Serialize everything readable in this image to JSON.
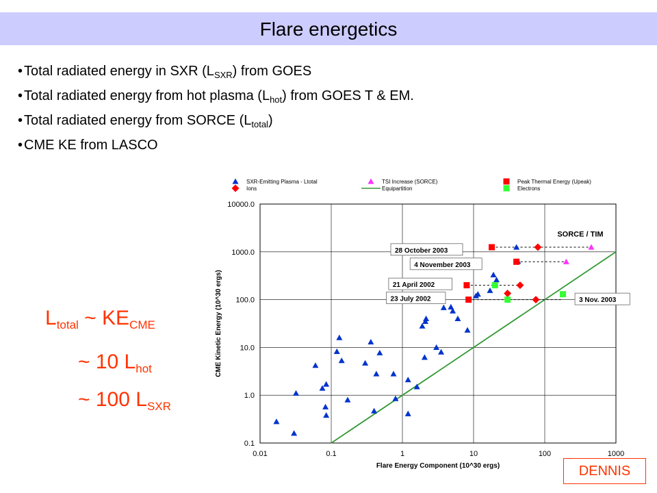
{
  "title": "Flare energetics",
  "bullets": [
    {
      "pre": "Total radiated energy in SXR (L",
      "sub": "SXR",
      "post": ") from GOES"
    },
    {
      "pre": "Total radiated energy from hot plasma (L",
      "sub": "hot",
      "post": ") from GOES T & EM."
    },
    {
      "pre": "Total radiated energy from SORCE (L",
      "sub": "total",
      "post": ")"
    },
    {
      "pre": "CME KE from LASCO",
      "sub": "",
      "post": ""
    }
  ],
  "equations": {
    "line1": {
      "a": "L",
      "a_sub": "total",
      "b": " ~ KE",
      "b_sub": "CME"
    },
    "line2": {
      "a": "~ 10 L",
      "a_sub": "hot"
    },
    "line3": {
      "a": "~ 100 L",
      "a_sub": "SXR"
    }
  },
  "credit": "DENNIS",
  "colors": {
    "title_bar": "#ccccff",
    "accent": "#ff3300",
    "blue": "#0033cc",
    "red": "#ff0000",
    "magenta": "#ff33ff",
    "green": "#33ff33",
    "line": "#339933"
  },
  "chart_data": {
    "type": "scatter",
    "xscale": "log",
    "yscale": "log",
    "xlim": [
      0.01,
      1000
    ],
    "ylim": [
      0.1,
      10000
    ],
    "xlabel": "Flare Energy Component (10^30 ergs)",
    "ylabel": "CME Kinetic Energy (10^30 ergs)",
    "x_ticks": [
      "0.01",
      "0.1",
      "1",
      "10",
      "100",
      "1000"
    ],
    "y_ticks": [
      "0.1",
      "1.0",
      "10.0",
      "100.0",
      "1000.0",
      "10000.0"
    ],
    "grid": true,
    "legend_position": "top",
    "legend": [
      {
        "label": "SXR-Emitting Plasma - Ltotal",
        "marker": "triangle",
        "color": "#0033cc"
      },
      {
        "label": "Ions",
        "marker": "diamond",
        "color": "#ff0000"
      },
      {
        "label": "TSI Increase (SORCE)",
        "marker": "triangle",
        "color": "#ff33ff"
      },
      {
        "label": "Equipartition",
        "marker": "line",
        "color": "#339933"
      },
      {
        "label": "Peak Thermal Energy (Upeak)",
        "marker": "square",
        "color": "#ff0000"
      },
      {
        "label": "Electrons",
        "marker": "square",
        "color": "#33ff33"
      }
    ],
    "series": [
      {
        "name": "SXR-Emitting Plasma - Ltotal",
        "marker": "triangle",
        "color": "#0033cc",
        "points": [
          [
            0.017,
            0.28
          ],
          [
            0.03,
            0.16
          ],
          [
            0.032,
            1.1
          ],
          [
            0.06,
            4.2
          ],
          [
            0.075,
            1.4
          ],
          [
            0.085,
            1.7
          ],
          [
            0.083,
            0.57
          ],
          [
            0.085,
            0.38
          ],
          [
            0.12,
            8.2
          ],
          [
            0.13,
            16
          ],
          [
            0.14,
            5.3
          ],
          [
            0.17,
            0.8
          ],
          [
            0.3,
            4.7
          ],
          [
            0.36,
            13
          ],
          [
            0.4,
            0.47
          ],
          [
            0.43,
            2.8
          ],
          [
            0.48,
            7.7
          ],
          [
            0.75,
            2.8
          ],
          [
            0.8,
            0.85
          ],
          [
            1.2,
            2.1
          ],
          [
            1.2,
            0.41
          ],
          [
            1.6,
            1.5
          ],
          [
            1.9,
            28
          ],
          [
            2.05,
            6.2
          ],
          [
            2.1,
            35
          ],
          [
            2.15,
            40
          ],
          [
            3.0,
            10
          ],
          [
            3.5,
            8
          ],
          [
            3.8,
            68
          ],
          [
            4.8,
            70
          ],
          [
            5.1,
            58
          ],
          [
            6.0,
            40
          ],
          [
            8.2,
            23
          ],
          [
            10.8,
            120
          ],
          [
            11.5,
            130
          ],
          [
            17,
            155
          ],
          [
            19,
            330
          ],
          [
            21,
            260
          ],
          [
            40,
            1250
          ],
          [
            42,
            630
          ]
        ]
      },
      {
        "name": "TSI Increase (SORCE)",
        "marker": "triangle",
        "color": "#ff33ff",
        "points": [
          [
            450,
            1250
          ],
          [
            200,
            620
          ]
        ]
      },
      {
        "name": "Peak Thermal Energy (Upeak)",
        "marker": "square",
        "color": "#ff0000",
        "points": [
          [
            18,
            1250
          ],
          [
            40,
            620
          ],
          [
            8,
            200
          ],
          [
            8.5,
            100
          ]
        ]
      },
      {
        "name": "Ions",
        "marker": "diamond",
        "color": "#ff0000",
        "points": [
          [
            80,
            1250
          ],
          [
            45,
            200
          ],
          [
            30,
            135
          ],
          [
            75,
            100
          ]
        ]
      },
      {
        "name": "Electrons",
        "marker": "square",
        "color": "#33ff33",
        "points": [
          [
            20,
            200
          ],
          [
            30,
            100
          ],
          [
            180,
            130
          ]
        ]
      }
    ],
    "equipartition": [
      [
        0.1,
        0.1
      ],
      [
        1000,
        1000
      ]
    ],
    "connectors": [
      {
        "x1": 18,
        "x2": 450,
        "y": 1250
      },
      {
        "x1": 40,
        "x2": 200,
        "y": 620
      },
      {
        "x1": 8,
        "x2": 45,
        "y": 200
      },
      {
        "x1": 8.5,
        "x2": 180,
        "y": 100
      }
    ],
    "annotations": [
      {
        "text": "SORCE / TIM",
        "x": 150,
        "y": 2100,
        "box": false
      },
      {
        "text": "28 October 2003",
        "x": 0.75,
        "y": 1000,
        "box": true
      },
      {
        "text": "4 November 2003",
        "x": 1.4,
        "y": 500,
        "box": true
      },
      {
        "text": "21 April 2002",
        "x": 0.7,
        "y": 190,
        "box": true
      },
      {
        "text": "23 July 2002",
        "x": 0.65,
        "y": 97,
        "box": true
      },
      {
        "text": "3 Nov. 2003",
        "x": 290,
        "y": 92,
        "box": true
      }
    ]
  }
}
